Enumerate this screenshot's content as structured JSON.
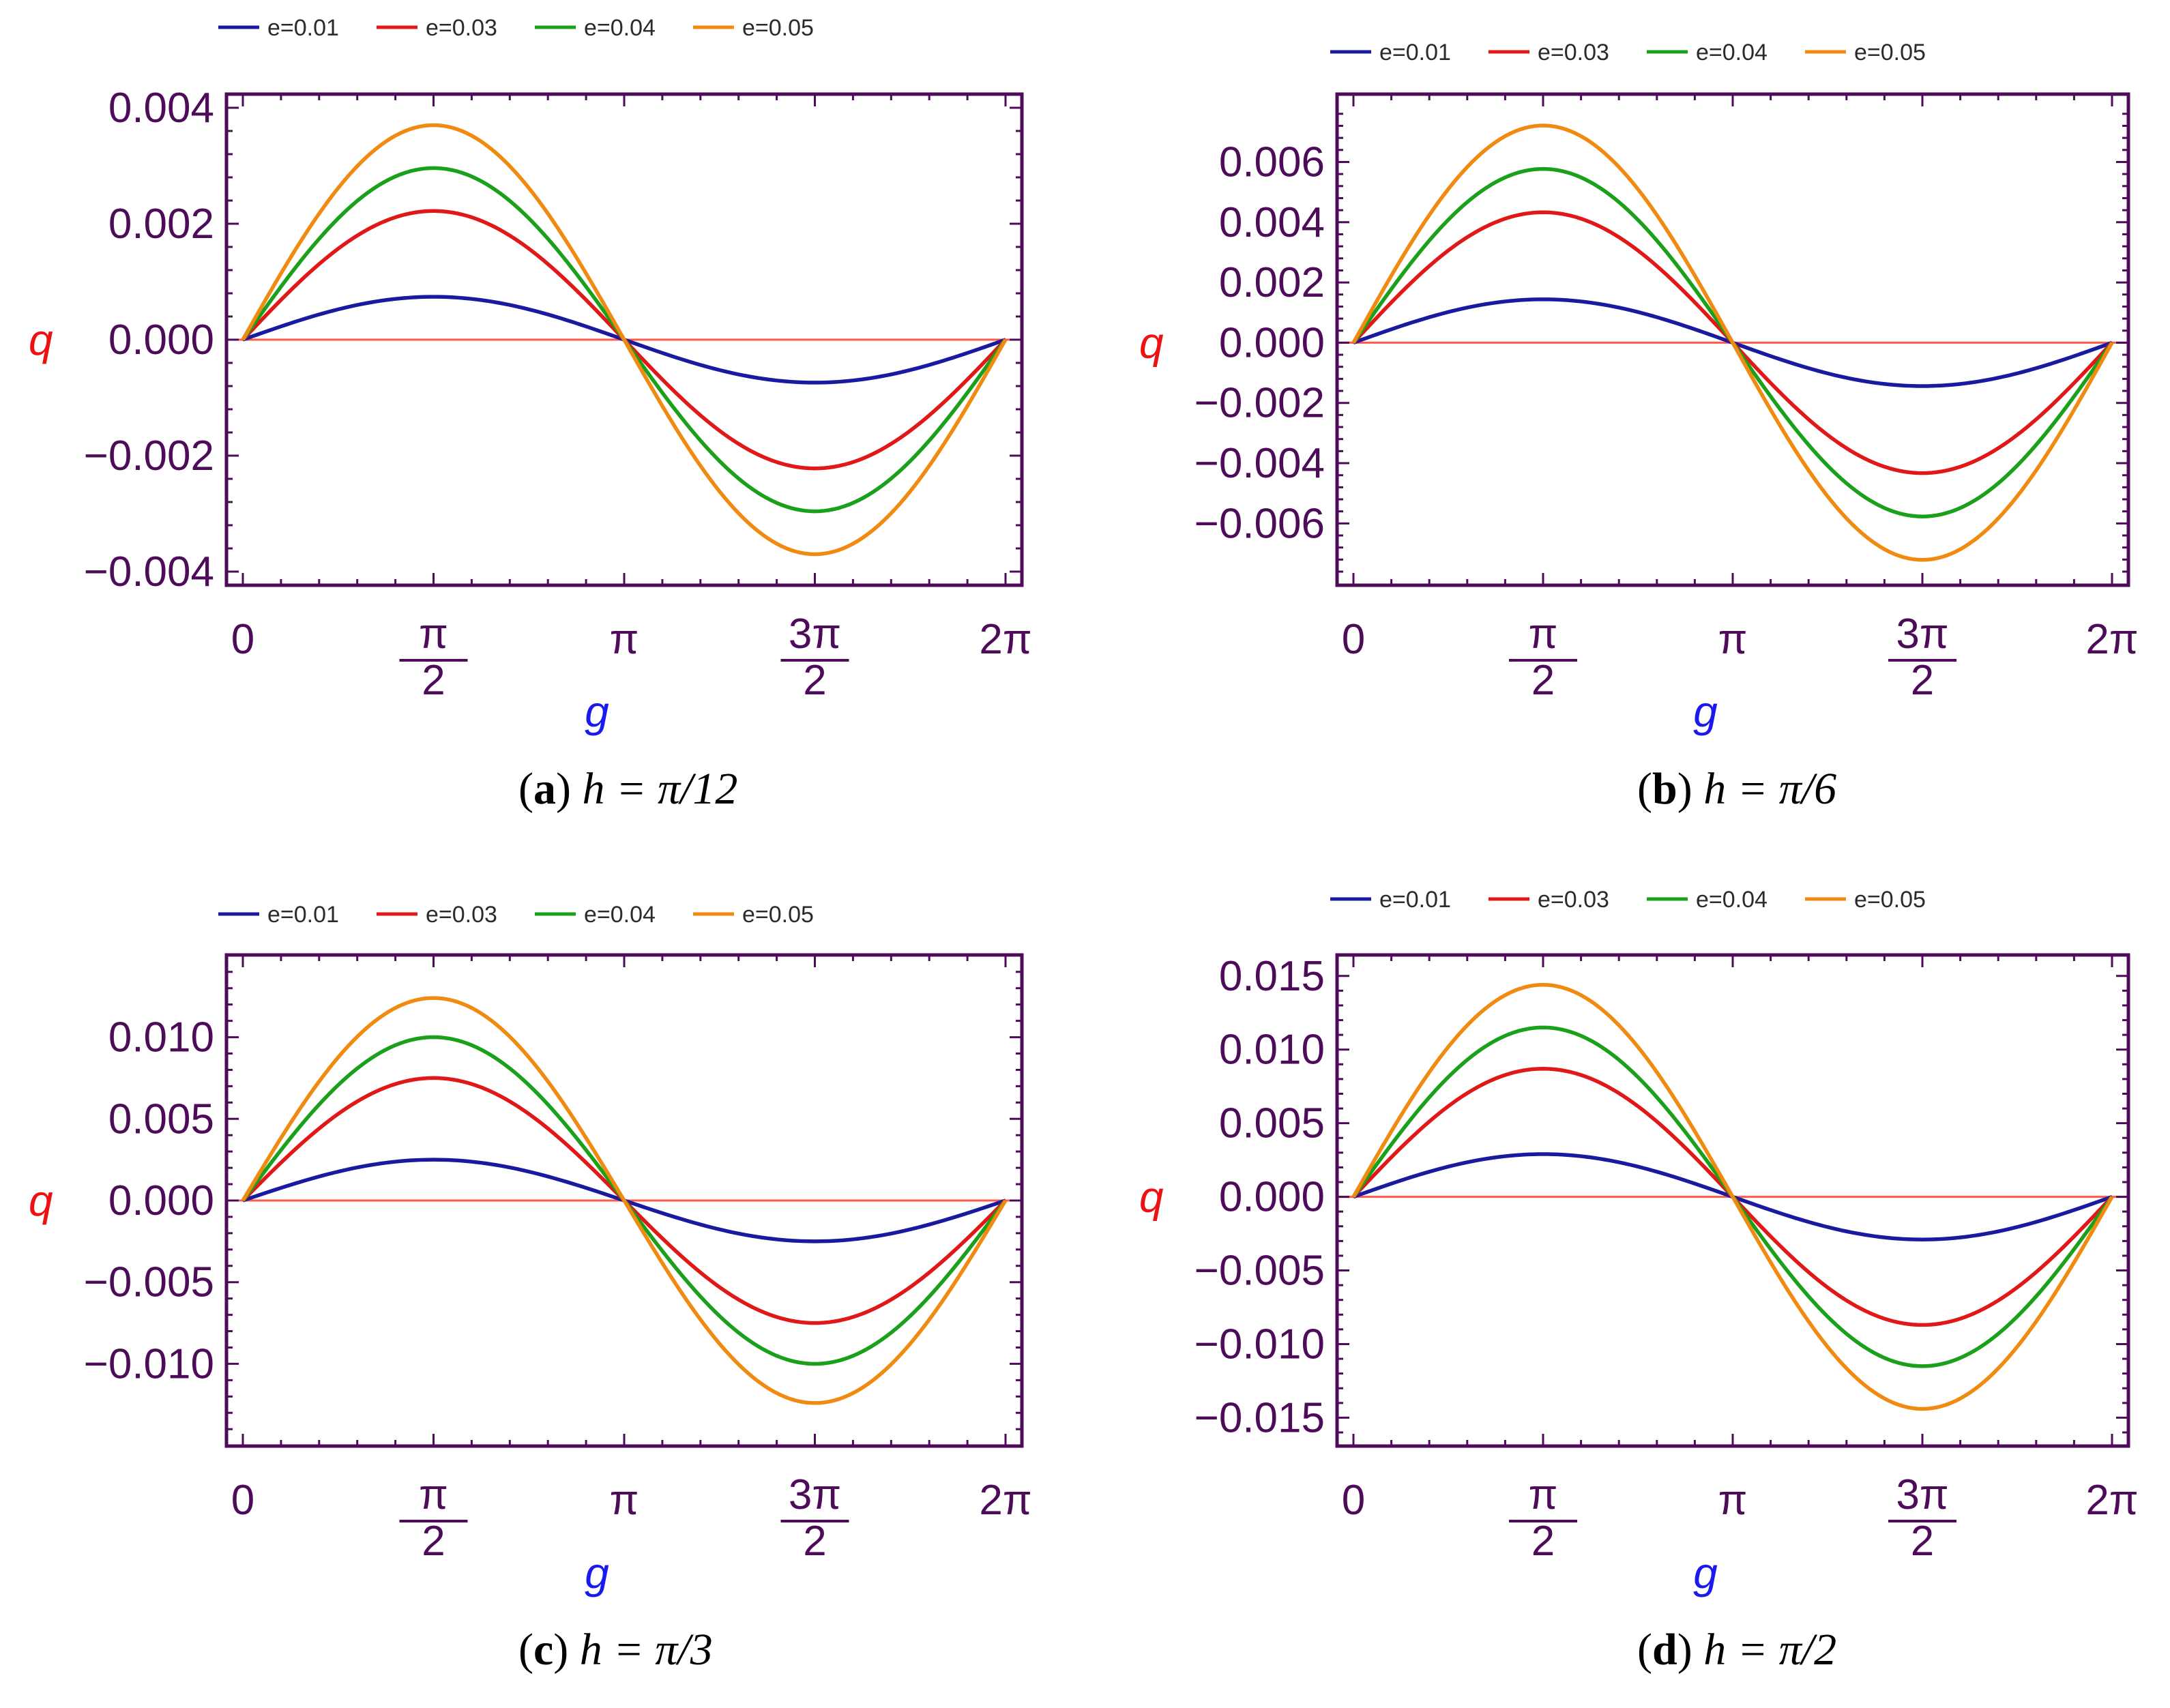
{
  "chart_data": [
    {
      "type": "line",
      "panel_letter": "a",
      "caption_rest": "h = π/12",
      "xlabel": "g",
      "ylabel": "q",
      "xlim": [
        0,
        6.2832
      ],
      "ylim": [
        -0.004,
        0.004
      ],
      "yticks": [
        -0.004,
        -0.002,
        0.0,
        0.002,
        0.004
      ],
      "ytick_labels": [
        "−0.004",
        "−0.002",
        "0.000",
        "0.002",
        "0.004"
      ],
      "xticks": [
        0,
        1.5708,
        3.1416,
        4.7124,
        6.2832
      ],
      "xtick_labels": [
        "0",
        "π/2",
        "π",
        "3π/2",
        "2π"
      ],
      "series": [
        {
          "name": "e=0.01",
          "amplitude": 0.00074
        },
        {
          "name": "e=0.03",
          "amplitude": 0.00222
        },
        {
          "name": "e=0.04",
          "amplitude": 0.00296
        },
        {
          "name": "e=0.05",
          "amplitude": 0.0037
        }
      ]
    },
    {
      "type": "line",
      "panel_letter": "b",
      "caption_rest": "h = π/6",
      "xlabel": "g",
      "ylabel": "q",
      "xlim": [
        0,
        6.2832
      ],
      "ylim": [
        -0.0076,
        0.0078
      ],
      "yticks": [
        -0.006,
        -0.004,
        -0.002,
        0.0,
        0.002,
        0.004,
        0.006
      ],
      "ytick_labels": [
        "−0.006",
        "−0.004",
        "−0.002",
        "0.000",
        "0.002",
        "0.004",
        "0.006"
      ],
      "xticks": [
        0,
        1.5708,
        3.1416,
        4.7124,
        6.2832
      ],
      "xtick_labels": [
        "0",
        "π/2",
        "π",
        "3π/2",
        "2π"
      ],
      "series": [
        {
          "name": "e=0.01",
          "amplitude": 0.00144
        },
        {
          "name": "e=0.03",
          "amplitude": 0.00433
        },
        {
          "name": "e=0.04",
          "amplitude": 0.00577
        },
        {
          "name": "e=0.05",
          "amplitude": 0.00721
        }
      ]
    },
    {
      "type": "line",
      "panel_letter": "c",
      "caption_rest": "h = π/3",
      "xlabel": "g",
      "ylabel": "q",
      "xlim": [
        0,
        6.2832
      ],
      "ylim": [
        -0.0142,
        0.0142
      ],
      "yticks": [
        -0.01,
        -0.005,
        0.0,
        0.005,
        0.01
      ],
      "ytick_labels": [
        "−0.010",
        "−0.005",
        "0.000",
        "0.005",
        "0.010"
      ],
      "xticks": [
        0,
        1.5708,
        3.1416,
        4.7124,
        6.2832
      ],
      "xtick_labels": [
        "0",
        "π/2",
        "π",
        "3π/2",
        "2π"
      ],
      "series": [
        {
          "name": "e=0.01",
          "amplitude": 0.0025
        },
        {
          "name": "e=0.03",
          "amplitude": 0.0075
        },
        {
          "name": "e=0.04",
          "amplitude": 0.01
        },
        {
          "name": "e=0.05",
          "amplitude": 0.0124
        }
      ]
    },
    {
      "type": "line",
      "panel_letter": "d",
      "caption_rest": "h = π/2",
      "xlabel": "g",
      "ylabel": "q",
      "xlim": [
        0,
        6.2832
      ],
      "ylim": [
        -0.016,
        0.0155
      ],
      "yticks": [
        -0.015,
        -0.01,
        -0.005,
        0.0,
        0.005,
        0.01,
        0.015
      ],
      "ytick_labels": [
        "−0.015",
        "−0.010",
        "−0.005",
        "0.000",
        "0.005",
        "0.010",
        "0.015"
      ],
      "xticks": [
        0,
        1.5708,
        3.1416,
        4.7124,
        6.2832
      ],
      "xtick_labels": [
        "0",
        "π/2",
        "π",
        "3π/2",
        "2π"
      ],
      "series": [
        {
          "name": "e=0.01",
          "amplitude": 0.0029
        },
        {
          "name": "e=0.03",
          "amplitude": 0.0087
        },
        {
          "name": "e=0.04",
          "amplitude": 0.0115
        },
        {
          "name": "e=0.05",
          "amplitude": 0.0144
        }
      ]
    }
  ],
  "colors": {
    "series": [
      "#1a1aa0",
      "#e01818",
      "#1aa01a",
      "#f08a10"
    ],
    "frame": "#4d0b59",
    "ticklabel": "#4d0b59",
    "xlabel": "#1a1aee",
    "ylabel": "#ee1111",
    "zeroline": "#ff5a4a"
  }
}
